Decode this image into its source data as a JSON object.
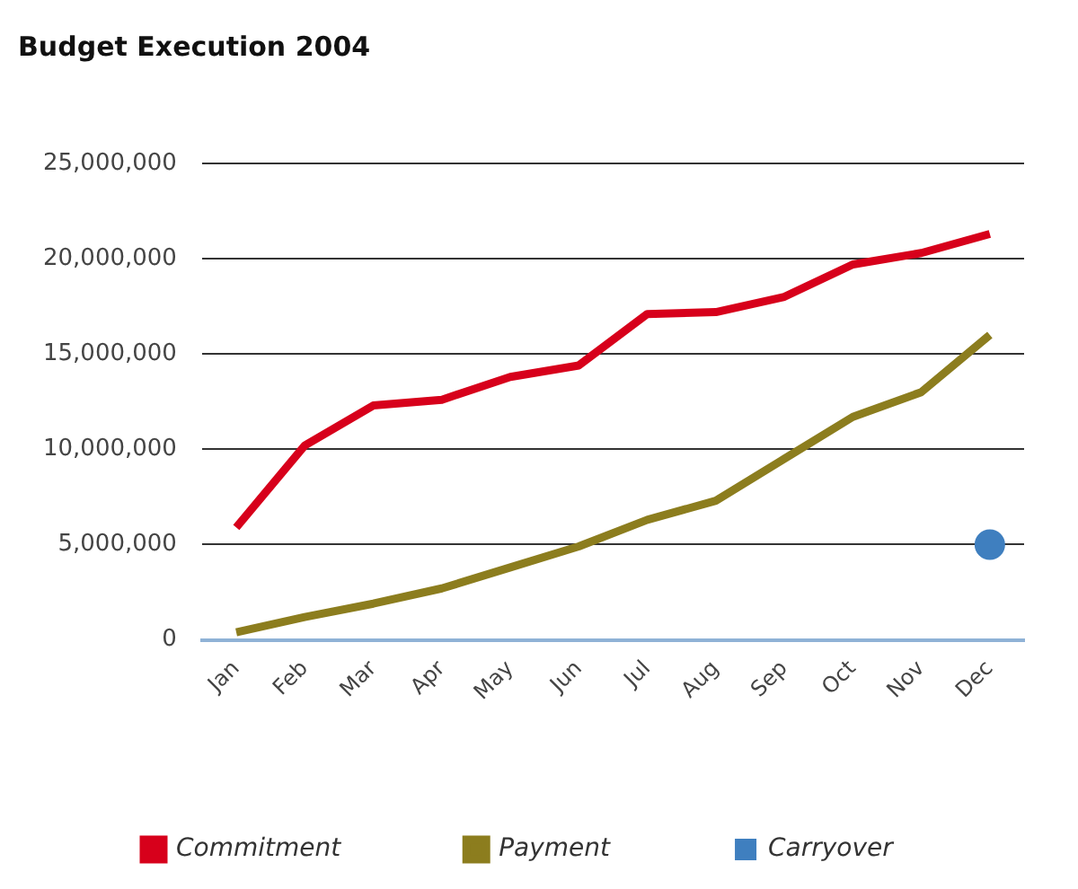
{
  "chart_data": {
    "type": "line",
    "title": "Budget Execution 2004",
    "categories": [
      "Jan",
      "Feb",
      "Mar",
      "Apr",
      "May",
      "Jun",
      "Jul",
      "Aug",
      "Sep",
      "Oct",
      "Nov",
      "Dec"
    ],
    "series": [
      {
        "name": "Commitment",
        "color": "#d7001b",
        "values": [
          5900000,
          10200000,
          12300000,
          12600000,
          13800000,
          14400000,
          17100000,
          17200000,
          18000000,
          19700000,
          20300000,
          21300000
        ]
      },
      {
        "name": "Payment",
        "color": "#8c7d1e",
        "values": [
          400000,
          1200000,
          1900000,
          2700000,
          3800000,
          4900000,
          6300000,
          7300000,
          9500000,
          11700000,
          13000000,
          16000000
        ]
      },
      {
        "name": "Carryover",
        "type": "scatter",
        "color": "#3f7fbf",
        "marker": "circle",
        "x": [
          "Dec"
        ],
        "values": [
          5000000
        ]
      }
    ],
    "ylim": [
      0,
      25000000
    ],
    "yticks": [
      {
        "value": 0,
        "label": "0"
      },
      {
        "value": 5000000,
        "label": "5,000,000"
      },
      {
        "value": 10000000,
        "label": "10,000,000"
      },
      {
        "value": 15000000,
        "label": "15,000,000"
      },
      {
        "value": 20000000,
        "label": "20,000,000"
      },
      {
        "value": 25000000,
        "label": "25,000,000"
      }
    ],
    "grid": "y",
    "legend": "bottom",
    "marker": "none"
  }
}
